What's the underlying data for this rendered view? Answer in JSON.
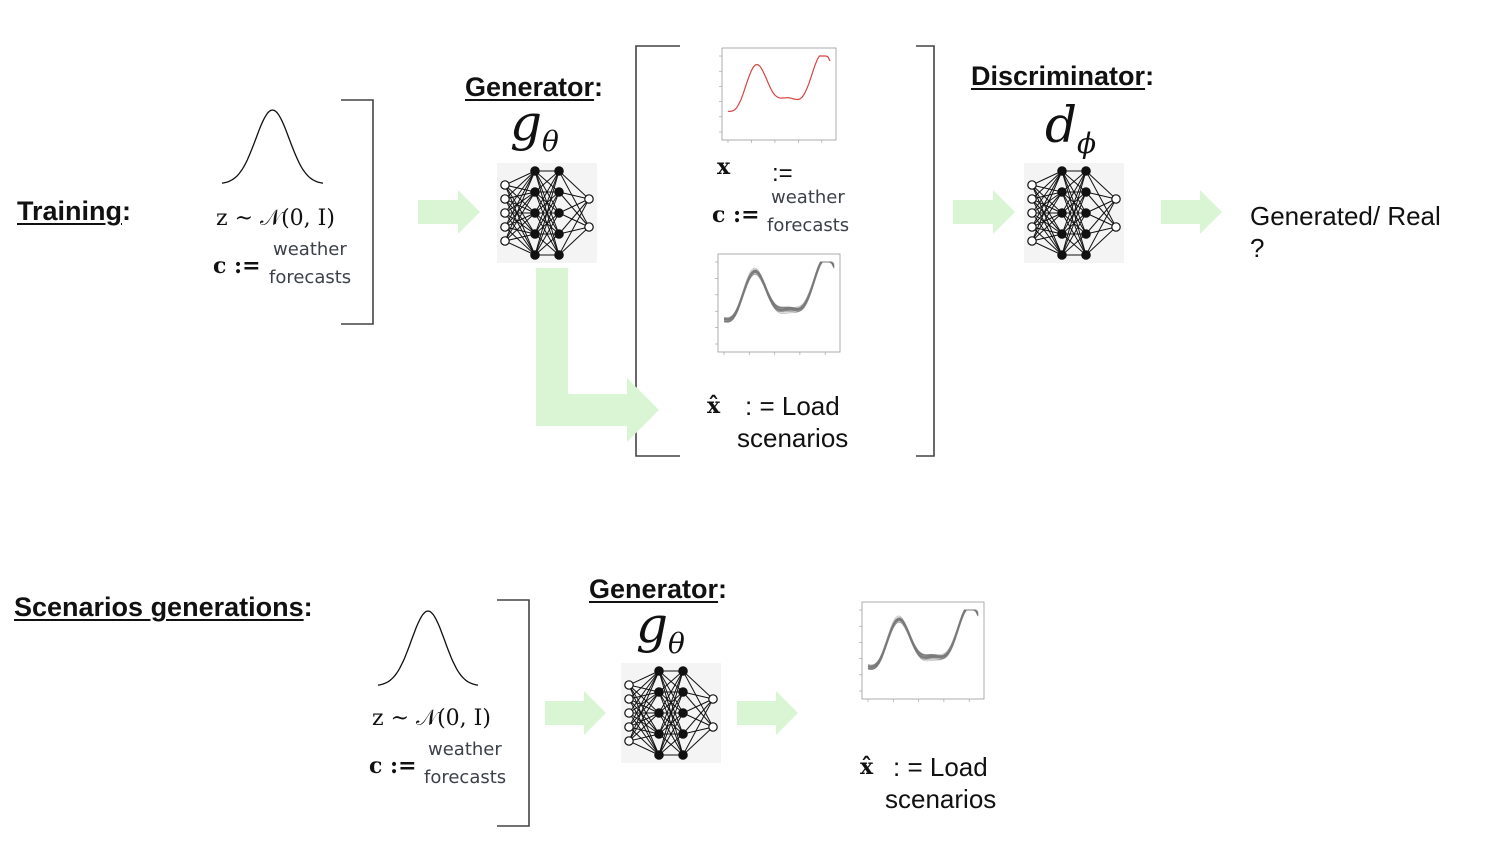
{
  "training": {
    "label": "Training",
    "noise_eq": "z ~ 𝒩(0, I)",
    "cond_sym": "c :=",
    "cond_text_1": "weather",
    "cond_text_2": "forecasts",
    "generator_label": "Generator",
    "generator_symbol": "g",
    "generator_sub": "θ",
    "real_x_sym": "x",
    "real_x_assign": ":=",
    "real_c_sym": "c :=",
    "real_c_text_1": "weather",
    "real_c_text_2": "forecasts",
    "fake_x_sym": "x̂",
    "fake_x_text_1": ": = Load",
    "fake_x_text_2": "scenarios",
    "discriminator_label": "Discriminator",
    "discriminator_symbol": "d",
    "discriminator_sub": "ϕ",
    "output_line_1": "Generated/ Real",
    "output_line_2": "?"
  },
  "generation": {
    "label": "Scenarios generations",
    "noise_eq": "z ~ 𝒩(0, I)",
    "cond_sym": "c :=",
    "cond_text_1": "weather",
    "cond_text_2": "forecasts",
    "generator_label": "Generator",
    "generator_symbol": "g",
    "generator_sub": "θ",
    "out_x_sym": "x̂",
    "out_text_1": ": = Load",
    "out_text_2": "scenarios"
  },
  "colors": {
    "arrow": "#d9f5d3",
    "curve_real": "#d64541",
    "curve_gen": "#7a7a7a",
    "nn_node": "#111111"
  },
  "icons": [
    "gaussian-curve-icon",
    "neural-network-icon",
    "right-arrow-icon",
    "elbow-arrow-icon",
    "bracket-icon",
    "plot-thumbnail-icon"
  ]
}
